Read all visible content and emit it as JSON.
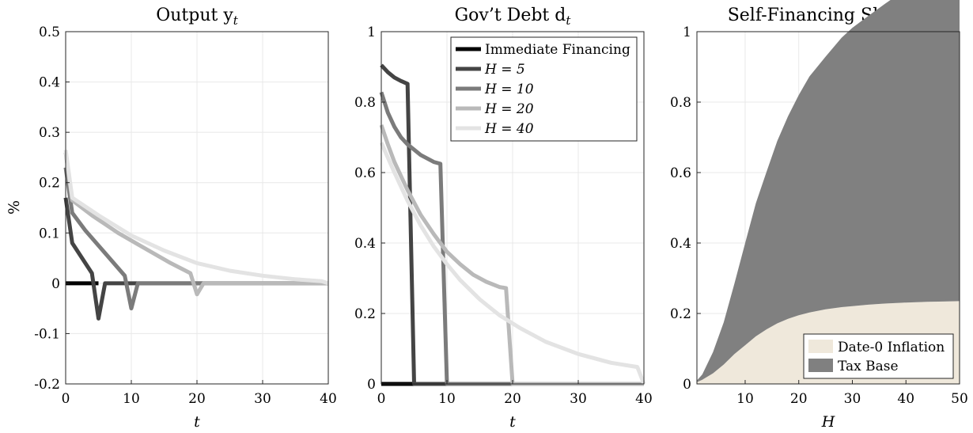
{
  "chart_data": [
    {
      "type": "line",
      "title": "Output y",
      "title_subscript": "t",
      "xlabel": "t",
      "ylabel": "%",
      "xlim": [
        0,
        40
      ],
      "ylim": [
        -0.2,
        0.5
      ],
      "xticks": [
        0,
        10,
        20,
        30,
        40
      ],
      "yticks": [
        -0.2,
        -0.1,
        0,
        0.1,
        0.2,
        0.3,
        0.4,
        0.5
      ],
      "ytick_labels": [
        "-0.2",
        "-0.1",
        "0",
        "0.1",
        "0.2",
        "0.3",
        "0.4",
        "0.5"
      ],
      "grid": true,
      "series": [
        {
          "color": "#000000",
          "x": [
            0,
            5
          ],
          "y": [
            0,
            0
          ]
        },
        {
          "color": "#444444",
          "x": [
            0,
            1,
            4,
            5,
            6,
            40
          ],
          "y": [
            0.17,
            0.08,
            0.02,
            -0.07,
            0,
            0
          ]
        },
        {
          "color": "#7b7b7b",
          "x": [
            0,
            1,
            3,
            6,
            9,
            10,
            11,
            40
          ],
          "y": [
            0.23,
            0.14,
            0.105,
            0.06,
            0.015,
            -0.05,
            0,
            0
          ]
        },
        {
          "color": "#b9b9b9",
          "x": [
            0,
            1,
            4,
            8,
            12,
            16,
            19,
            20,
            21,
            40
          ],
          "y": [
            0.26,
            0.165,
            0.135,
            0.1,
            0.07,
            0.04,
            0.02,
            -0.022,
            0,
            0
          ]
        },
        {
          "color": "#e3e3e3",
          "x": [
            0,
            1,
            5,
            10,
            15,
            20,
            25,
            30,
            35,
            39,
            40
          ],
          "y": [
            0.265,
            0.17,
            0.135,
            0.095,
            0.065,
            0.04,
            0.025,
            0.015,
            0.008,
            0.004,
            0
          ]
        }
      ]
    },
    {
      "type": "line",
      "title": "Gov’t Debt d",
      "title_subscript": "t",
      "xlabel": "t",
      "xlim": [
        0,
        40
      ],
      "ylim": [
        0,
        1
      ],
      "xticks": [
        0,
        10,
        20,
        30,
        40
      ],
      "yticks": [
        0,
        0.2,
        0.4,
        0.6,
        0.8,
        1
      ],
      "ytick_labels": [
        "0",
        "0.2",
        "0.4",
        "0.6",
        "0.8",
        "1"
      ],
      "grid": true,
      "legend_placement": "top-right",
      "series": [
        {
          "name": "Immediate Financing",
          "color": "#000000",
          "x": [
            0,
            5
          ],
          "y": [
            0,
            0
          ]
        },
        {
          "name": "H = 5",
          "color": "#444444",
          "x": [
            0,
            1,
            2,
            3,
            4,
            5,
            40
          ],
          "y": [
            0.905,
            0.885,
            0.87,
            0.86,
            0.852,
            0,
            0
          ]
        },
        {
          "name": "H = 10",
          "color": "#7b7b7b",
          "x": [
            0,
            1,
            2,
            3,
            4,
            5,
            6,
            7,
            8,
            9,
            10,
            40
          ],
          "y": [
            0.828,
            0.77,
            0.73,
            0.7,
            0.68,
            0.665,
            0.65,
            0.64,
            0.63,
            0.625,
            0,
            0
          ]
        },
        {
          "name": "H = 20",
          "color": "#b9b9b9",
          "x": [
            0,
            1,
            2,
            4,
            6,
            8,
            10,
            12,
            14,
            16,
            18,
            19,
            20,
            40
          ],
          "y": [
            0.735,
            0.68,
            0.63,
            0.55,
            0.48,
            0.425,
            0.375,
            0.34,
            0.31,
            0.29,
            0.275,
            0.272,
            0,
            0
          ]
        },
        {
          "name": "H = 40",
          "color": "#e3e3e3",
          "x": [
            0,
            2,
            4,
            6,
            8,
            10,
            12,
            15,
            18,
            21,
            25,
            30,
            35,
            39,
            40
          ],
          "y": [
            0.685,
            0.6,
            0.52,
            0.45,
            0.39,
            0.34,
            0.295,
            0.24,
            0.195,
            0.16,
            0.12,
            0.085,
            0.06,
            0.048,
            0
          ]
        }
      ]
    },
    {
      "type": "area",
      "title": "Self-Financing Share ν",
      "xlabel": "H",
      "xlim": [
        1,
        50
      ],
      "ylim": [
        0,
        1
      ],
      "xticks": [
        10,
        20,
        30,
        40,
        50
      ],
      "yticks": [
        0,
        0.2,
        0.4,
        0.6,
        0.8,
        1
      ],
      "ytick_labels": [
        "0",
        "0.2",
        "0.4",
        "0.6",
        "0.8",
        "1"
      ],
      "grid": true,
      "legend_placement": "bottom-right",
      "x": [
        1,
        2,
        4,
        6,
        8,
        10,
        12,
        14,
        16,
        18,
        20,
        22,
        25,
        28,
        30,
        33,
        36,
        40,
        44,
        47,
        50
      ],
      "series": [
        {
          "name": "Date-0 Inflation",
          "color": "#efe8db",
          "values": [
            0.005,
            0.012,
            0.03,
            0.055,
            0.085,
            0.11,
            0.135,
            0.155,
            0.172,
            0.185,
            0.195,
            0.203,
            0.212,
            0.218,
            0.221,
            0.225,
            0.228,
            0.231,
            0.233,
            0.234,
            0.235
          ]
        },
        {
          "name": "Tax Base",
          "color": "#808080",
          "values": [
            0.005,
            0.015,
            0.06,
            0.12,
            0.2,
            0.29,
            0.378,
            0.448,
            0.518,
            0.575,
            0.625,
            0.67,
            0.717,
            0.765,
            0.79,
            0.82,
            0.85,
            0.89,
            0.93,
            0.955,
            0.98
          ]
        }
      ]
    }
  ]
}
